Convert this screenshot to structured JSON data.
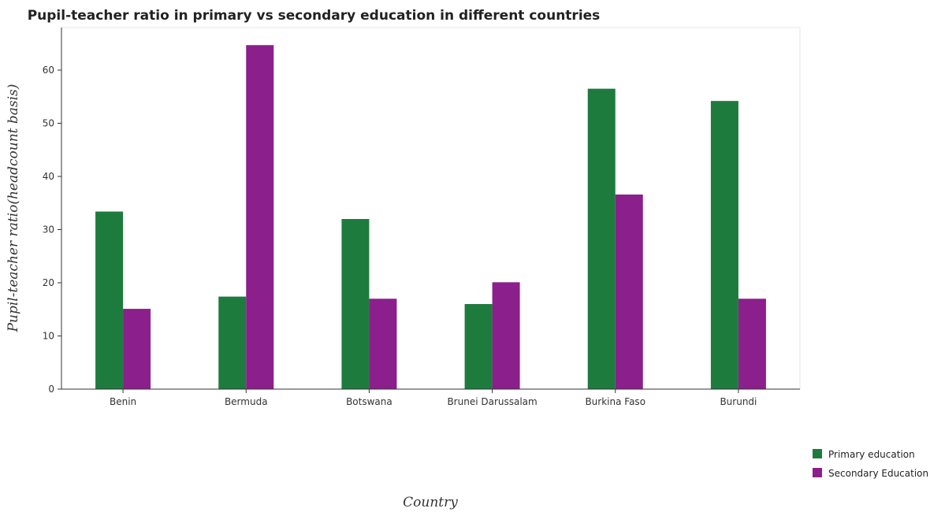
{
  "chart_data": {
    "type": "bar",
    "title": "Pupil-teacher ratio in primary vs secondary education in different countries",
    "xlabel": "Country",
    "ylabel": "Pupil-teacher ratio(headcount basis)",
    "categories": [
      "Benin",
      "Bermuda",
      "Botswana",
      "Brunei Darussalam",
      "Burkina Faso",
      "Burundi"
    ],
    "series": [
      {
        "name": "Primary education",
        "color": "#1e7b3e",
        "values": [
          33.4,
          17.4,
          32.0,
          16.0,
          56.5,
          54.2
        ]
      },
      {
        "name": "Secondary Education",
        "color": "#8b1f8b",
        "values": [
          15.1,
          64.7,
          17.0,
          20.1,
          36.6,
          17.0
        ]
      }
    ],
    "ylim": [
      0,
      68
    ],
    "yticks": [
      0,
      10,
      20,
      30,
      40,
      50,
      60
    ],
    "grid": false,
    "legend_position": "bottom-right"
  }
}
